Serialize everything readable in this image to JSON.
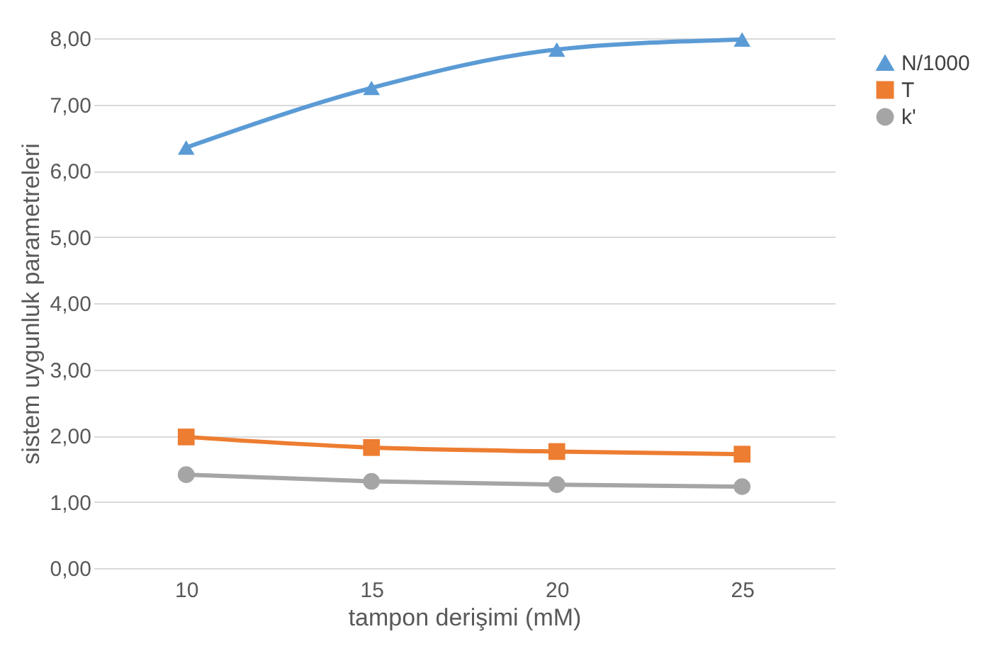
{
  "chart_data": {
    "type": "line",
    "xlabel": "tampon derişimi (mM)",
    "ylabel": "sistem uygunluk parametreleri",
    "categories": [
      "10",
      "15",
      "20",
      "25"
    ],
    "series": [
      {
        "name": "N/1000",
        "color": "#5b9bd5",
        "marker": "triangle",
        "values": [
          6.35,
          7.25,
          7.83,
          7.98
        ]
      },
      {
        "name": "T",
        "color": "#ed7d31",
        "marker": "square",
        "values": [
          1.98,
          1.82,
          1.76,
          1.72
        ]
      },
      {
        "name": "k'",
        "color": "#a5a5a5",
        "marker": "circle",
        "values": [
          1.41,
          1.31,
          1.26,
          1.23
        ]
      }
    ],
    "ylim": [
      0,
      8
    ],
    "yticks": [
      {
        "value": 0,
        "label": "0,00"
      },
      {
        "value": 1,
        "label": "1,00"
      },
      {
        "value": 2,
        "label": "2,00"
      },
      {
        "value": 3,
        "label": "3,00"
      },
      {
        "value": 4,
        "label": "4,00"
      },
      {
        "value": 5,
        "label": "5,00"
      },
      {
        "value": 6,
        "label": "6,00"
      },
      {
        "value": 7,
        "label": "7,00"
      },
      {
        "value": 8,
        "label": "8,00"
      }
    ],
    "grid": "y",
    "legend": "right",
    "line_style": "solid"
  }
}
